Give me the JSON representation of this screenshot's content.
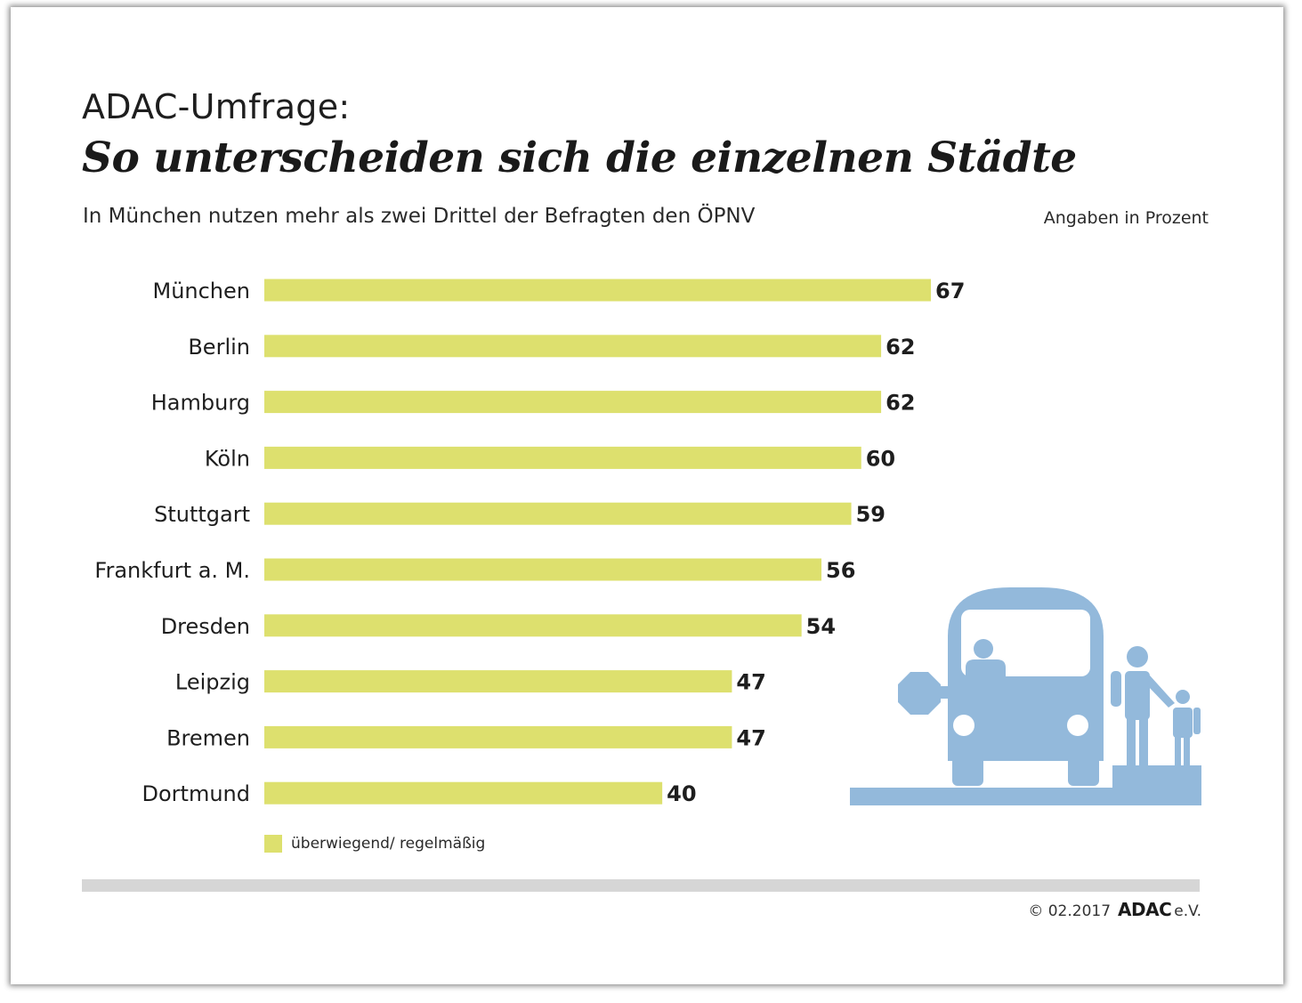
{
  "header": {
    "kicker": "ADAC-Umfrage:",
    "headline": "So unterscheiden sich die einzelnen Städte",
    "subtitle": "In München nutzen mehr als zwei Drittel der Befragten den ÖPNV",
    "unit_note": "Angaben in Prozent"
  },
  "chart_data": {
    "type": "bar",
    "orientation": "horizontal",
    "categories": [
      "München",
      "Berlin",
      "Hamburg",
      "Köln",
      "Stuttgart",
      "Frankfurt a. M.",
      "Dresden",
      "Leipzig",
      "Bremen",
      "Dortmund"
    ],
    "series": [
      {
        "name": "überwiegend/ regelmäßig",
        "values": [
          67,
          62,
          62,
          60,
          59,
          56,
          54,
          47,
          47,
          40
        ]
      }
    ],
    "bar_color": "#dde06e",
    "xlim": [
      0,
      67
    ],
    "grid": false,
    "legend": "bottom-left"
  },
  "legend": {
    "label": "überwiegend/ regelmäßig"
  },
  "illustration": {
    "icon": "bus-stop-icon",
    "color": "#93b9db"
  },
  "footer": {
    "copyright": "© 02.2017",
    "brand": "ADAC",
    "suffix": "e.V."
  }
}
